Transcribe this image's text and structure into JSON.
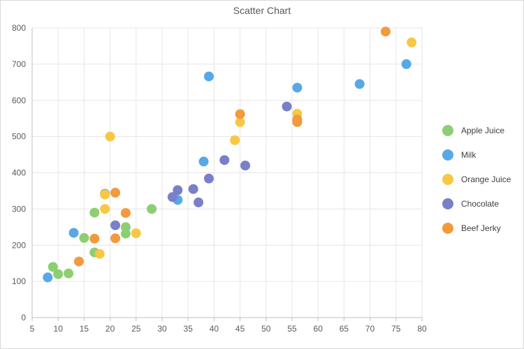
{
  "chart_data": {
    "type": "scatter",
    "title": "Scatter Chart",
    "xlabel": "",
    "ylabel": "",
    "xlim": [
      5,
      80
    ],
    "ylim": [
      0,
      800
    ],
    "xticks": [
      5,
      10,
      15,
      20,
      25,
      30,
      35,
      40,
      45,
      50,
      55,
      60,
      65,
      70,
      75,
      80
    ],
    "yticks": [
      0,
      100,
      200,
      300,
      400,
      500,
      600,
      700,
      800
    ],
    "grid": true,
    "legend_position": "right",
    "series": [
      {
        "name": "Apple Juice",
        "color": "#8ccf73",
        "points": [
          [
            9,
            140
          ],
          [
            10,
            120
          ],
          [
            12,
            122
          ],
          [
            15,
            220
          ],
          [
            17,
            290
          ],
          [
            17,
            180
          ],
          [
            23,
            232
          ],
          [
            23,
            250
          ],
          [
            28,
            300
          ]
        ]
      },
      {
        "name": "Milk",
        "color": "#59a8e6",
        "points": [
          [
            8,
            111
          ],
          [
            13,
            234
          ],
          [
            19,
            342
          ],
          [
            33,
            325
          ],
          [
            38,
            431
          ],
          [
            39,
            666
          ],
          [
            56,
            635
          ],
          [
            68,
            645
          ],
          [
            77,
            700
          ]
        ]
      },
      {
        "name": "Orange Juice",
        "color": "#f8c744",
        "points": [
          [
            18,
            176
          ],
          [
            19,
            300
          ],
          [
            19,
            340
          ],
          [
            20,
            500
          ],
          [
            25,
            233
          ],
          [
            44,
            490
          ],
          [
            45,
            540
          ],
          [
            56,
            563
          ],
          [
            78,
            760
          ]
        ]
      },
      {
        "name": "Chocolate",
        "color": "#7a7fc9",
        "points": [
          [
            21,
            255
          ],
          [
            32,
            333
          ],
          [
            33,
            352
          ],
          [
            36,
            355
          ],
          [
            37,
            318
          ],
          [
            39,
            384
          ],
          [
            42,
            435
          ],
          [
            46,
            420
          ],
          [
            54,
            583
          ]
        ]
      },
      {
        "name": "Beef Jerky",
        "color": "#f39a3d",
        "points": [
          [
            14,
            155
          ],
          [
            17,
            218
          ],
          [
            21,
            219
          ],
          [
            21,
            345
          ],
          [
            23,
            289
          ],
          [
            45,
            562
          ],
          [
            56,
            547
          ],
          [
            56,
            540
          ],
          [
            73,
            790
          ]
        ]
      }
    ]
  }
}
